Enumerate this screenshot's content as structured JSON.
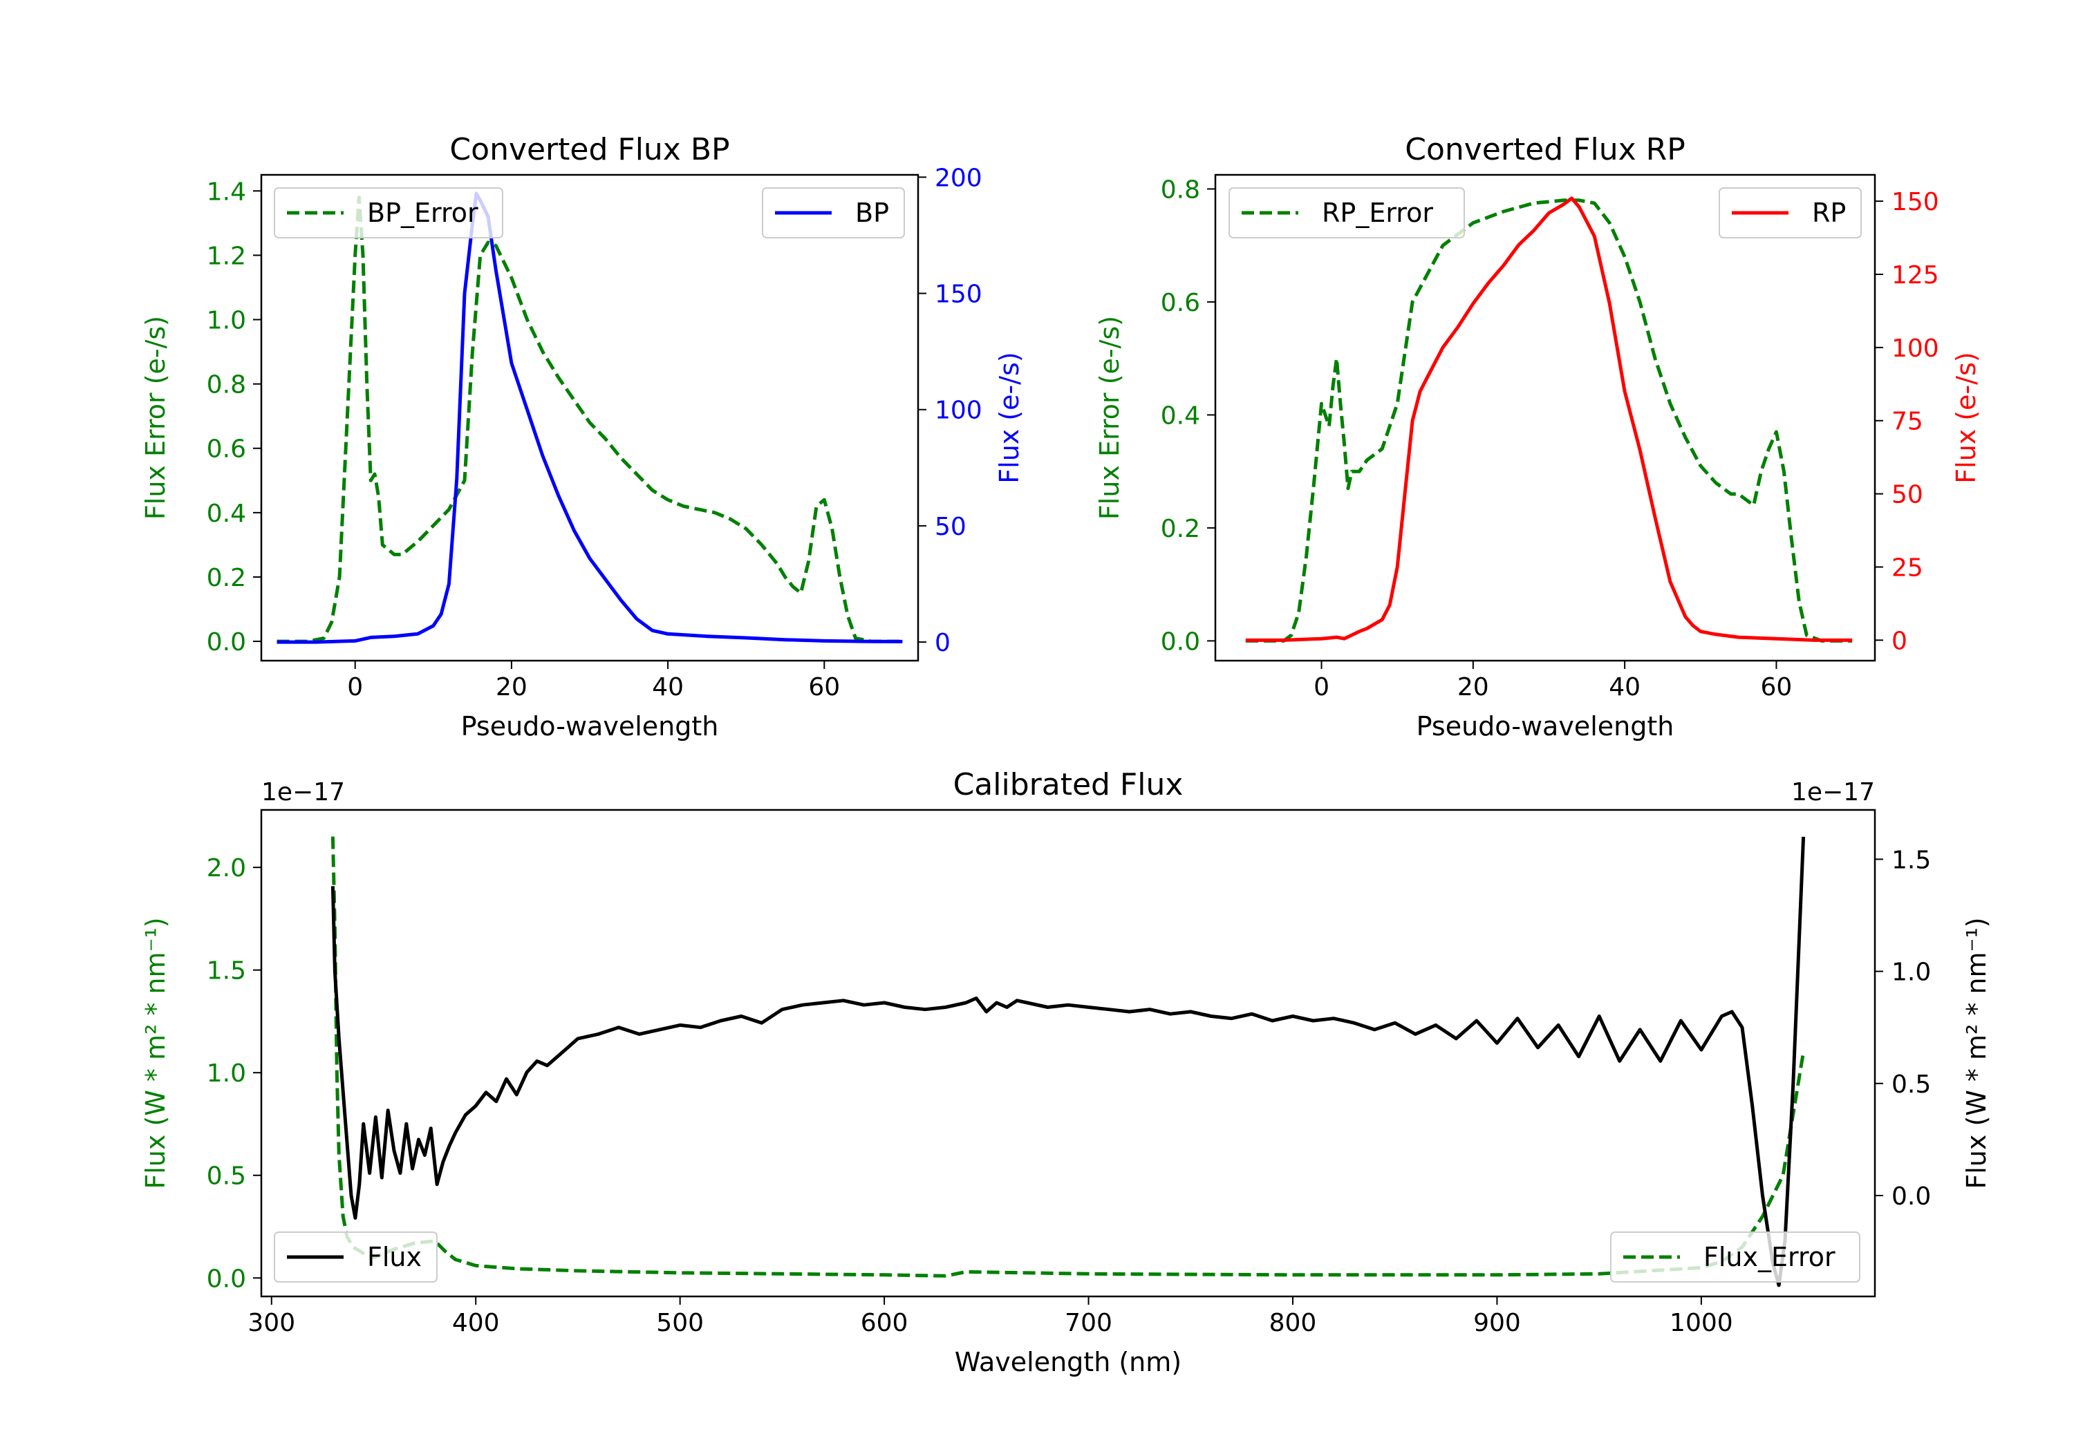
{
  "chart_data": [
    {
      "id": "bp",
      "type": "line",
      "title": "Converted Flux BP",
      "xlabel": "Pseudo-wavelength",
      "ylabel_left": "Flux Error (e-/s)",
      "ylabel_right": "Flux (e-/s)",
      "xlim": [
        -12,
        72
      ],
      "ylim_left": [
        -0.06,
        1.45
      ],
      "ylim_right": [
        -8,
        201
      ],
      "xticks": [
        0,
        20,
        40,
        60
      ],
      "yticks_left": [
        0.0,
        0.2,
        0.4,
        0.6,
        0.8,
        1.0,
        1.2,
        1.4
      ],
      "yticks_right": [
        0,
        50,
        100,
        150,
        200
      ],
      "legend_left_position": "upper-left",
      "legend_right_position": "upper-right",
      "series": [
        {
          "name": "BP_Error",
          "axis": "left",
          "color": "#008000",
          "dash": true,
          "x": [
            -10,
            -6,
            -4,
            -3,
            -2,
            -1,
            0,
            0.5,
            1,
            1.5,
            2,
            2.5,
            3,
            3.5,
            4,
            5,
            6,
            8,
            10,
            12,
            14,
            15,
            16,
            17,
            18,
            20,
            22,
            24,
            26,
            28,
            30,
            32,
            34,
            36,
            38,
            40,
            42,
            44,
            46,
            48,
            50,
            52,
            54,
            55,
            56,
            57,
            58,
            59,
            60,
            61,
            62,
            63,
            64,
            66,
            68,
            70
          ],
          "y": [
            0.0,
            0.0,
            0.01,
            0.06,
            0.2,
            0.7,
            1.2,
            1.38,
            1.2,
            0.8,
            0.5,
            0.52,
            0.45,
            0.3,
            0.29,
            0.27,
            0.27,
            0.31,
            0.36,
            0.41,
            0.5,
            0.9,
            1.2,
            1.24,
            1.23,
            1.13,
            1.0,
            0.9,
            0.82,
            0.75,
            0.68,
            0.63,
            0.57,
            0.52,
            0.47,
            0.44,
            0.42,
            0.41,
            0.4,
            0.38,
            0.35,
            0.3,
            0.24,
            0.2,
            0.17,
            0.15,
            0.25,
            0.42,
            0.44,
            0.35,
            0.2,
            0.08,
            0.01,
            0.0,
            0.0,
            0.0
          ]
        },
        {
          "name": "BP",
          "axis": "right",
          "color": "#0000ff",
          "dash": false,
          "x": [
            -10,
            -5,
            0,
            2,
            5,
            8,
            10,
            11,
            12,
            13,
            14,
            15,
            15.5,
            16,
            17,
            18,
            19,
            20,
            22,
            24,
            26,
            28,
            30,
            32,
            34,
            36,
            38,
            40,
            45,
            50,
            55,
            60,
            65,
            70
          ],
          "y": [
            0,
            0,
            0.5,
            2,
            2.5,
            3.5,
            7,
            12,
            25,
            70,
            150,
            180,
            193,
            190,
            183,
            160,
            140,
            120,
            100,
            80,
            63,
            48,
            36,
            27,
            18,
            10,
            5,
            3.5,
            2.5,
            1.8,
            1,
            0.5,
            0.3,
            0.2
          ]
        }
      ]
    },
    {
      "id": "rp",
      "type": "line",
      "title": "Converted Flux RP",
      "xlabel": "Pseudo-wavelength",
      "ylabel_left": "Flux Error (e-/s)",
      "ylabel_right": "Flux (e-/s)",
      "xlim": [
        -14,
        73
      ],
      "ylim_left": [
        -0.035,
        0.825
      ],
      "ylim_right": [
        -7,
        159
      ],
      "xticks": [
        0,
        20,
        40,
        60
      ],
      "yticks_left": [
        0.0,
        0.2,
        0.4,
        0.6,
        0.8
      ],
      "yticks_right": [
        0,
        25,
        50,
        75,
        100,
        125,
        150
      ],
      "legend_left_position": "upper-left",
      "legend_right_position": "upper-right",
      "series": [
        {
          "name": "RP_Error",
          "axis": "left",
          "color": "#008000",
          "dash": true,
          "x": [
            -10,
            -5,
            -4,
            -3,
            -2,
            -1,
            0,
            1,
            1.5,
            2,
            2.5,
            3,
            3.5,
            4,
            5,
            6,
            8,
            10,
            12,
            14,
            16,
            18,
            20,
            24,
            28,
            32,
            34,
            36,
            38,
            40,
            42,
            44,
            46,
            48,
            50,
            52,
            54,
            55,
            56,
            57,
            58,
            59,
            60,
            61,
            62,
            63,
            64,
            66,
            68,
            70
          ],
          "y": [
            0.0,
            0.0,
            0.01,
            0.05,
            0.15,
            0.28,
            0.42,
            0.38,
            0.45,
            0.5,
            0.42,
            0.35,
            0.27,
            0.3,
            0.3,
            0.32,
            0.34,
            0.42,
            0.6,
            0.65,
            0.7,
            0.72,
            0.74,
            0.76,
            0.775,
            0.78,
            0.78,
            0.775,
            0.74,
            0.68,
            0.6,
            0.5,
            0.42,
            0.36,
            0.31,
            0.28,
            0.26,
            0.26,
            0.25,
            0.24,
            0.3,
            0.34,
            0.37,
            0.3,
            0.18,
            0.07,
            0.01,
            0.0,
            0.0,
            0.0
          ]
        },
        {
          "name": "RP",
          "axis": "right",
          "color": "#ff0000",
          "dash": false,
          "x": [
            -10,
            -5,
            0,
            2,
            3,
            5,
            6,
            8,
            9,
            10,
            11,
            12,
            13,
            14,
            16,
            18,
            20,
            22,
            24,
            26,
            28,
            30,
            32,
            33,
            34,
            36,
            38,
            40,
            42,
            44,
            46,
            48,
            49,
            50,
            52,
            55,
            60,
            65,
            70
          ],
          "y": [
            0,
            0,
            0.5,
            1,
            0.5,
            3,
            4,
            7,
            12,
            25,
            50,
            75,
            85,
            90,
            100,
            107,
            115,
            122,
            128,
            135,
            140,
            146,
            149,
            151,
            148,
            138,
            115,
            85,
            65,
            42,
            20,
            8,
            5,
            3,
            2,
            1,
            0.5,
            0,
            0
          ]
        }
      ]
    },
    {
      "id": "calibrated",
      "type": "line",
      "title": "Calibrated Flux",
      "xlabel": "Wavelength (nm)",
      "ylabel_left": "Flux (W * m² * nm⁻¹)",
      "ylabel_right": "Flux (W * m² * nm⁻¹)",
      "offset_left": "1e−17",
      "offset_right": "1e−17",
      "xlim": [
        295,
        1085
      ],
      "ylim_left": [
        -0.09,
        2.28
      ],
      "ylim_right": [
        -0.45,
        1.72
      ],
      "xticks": [
        300,
        400,
        500,
        600,
        700,
        800,
        900,
        1000
      ],
      "yticks_left": [
        0.0,
        0.5,
        1.0,
        1.5,
        2.0
      ],
      "yticks_right": [
        0.0,
        0.5,
        1.0,
        1.5
      ],
      "legend_left_position": "lower-left",
      "legend_right_position": "lower-right",
      "series": [
        {
          "name": "Flux_Error",
          "axis": "left",
          "color": "#008000",
          "dash": true,
          "x": [
            330,
            331,
            332,
            333,
            335,
            337,
            340,
            345,
            350,
            360,
            370,
            380,
            385,
            390,
            400,
            420,
            450,
            500,
            550,
            600,
            630,
            640,
            700,
            800,
            900,
            950,
            1000,
            1010,
            1020,
            1030,
            1040,
            1045,
            1050
          ],
          "y": [
            2.15,
            1.7,
            1.0,
            0.6,
            0.3,
            0.2,
            0.15,
            0.12,
            0.1,
            0.14,
            0.17,
            0.18,
            0.13,
            0.09,
            0.06,
            0.045,
            0.035,
            0.025,
            0.02,
            0.015,
            0.01,
            0.03,
            0.02,
            0.015,
            0.015,
            0.02,
            0.05,
            0.08,
            0.15,
            0.3,
            0.5,
            0.8,
            1.1
          ]
        },
        {
          "name": "Flux",
          "axis": "right",
          "color": "#000000",
          "dash": false,
          "x": [
            330,
            331,
            333,
            336,
            339,
            341,
            343,
            345,
            348,
            351,
            354,
            357,
            360,
            363,
            366,
            369,
            372,
            375,
            378,
            381,
            384,
            387,
            390,
            395,
            400,
            405,
            410,
            415,
            420,
            425,
            430,
            435,
            440,
            445,
            450,
            460,
            470,
            480,
            490,
            500,
            510,
            520,
            530,
            540,
            550,
            560,
            570,
            580,
            590,
            600,
            610,
            620,
            630,
            640,
            645,
            650,
            655,
            660,
            665,
            670,
            680,
            690,
            700,
            710,
            720,
            730,
            740,
            750,
            760,
            770,
            780,
            790,
            800,
            810,
            820,
            830,
            840,
            850,
            860,
            870,
            880,
            890,
            900,
            910,
            920,
            930,
            940,
            950,
            960,
            970,
            980,
            990,
            1000,
            1010,
            1015,
            1020,
            1025,
            1030,
            1035,
            1038,
            1041,
            1045,
            1050
          ],
          "y": [
            1.38,
            1.0,
            0.7,
            0.35,
            0.0,
            -0.1,
            0.05,
            0.32,
            0.1,
            0.35,
            0.08,
            0.38,
            0.2,
            0.1,
            0.32,
            0.12,
            0.25,
            0.18,
            0.3,
            0.05,
            0.15,
            0.22,
            0.28,
            0.36,
            0.4,
            0.46,
            0.42,
            0.52,
            0.45,
            0.55,
            0.6,
            0.58,
            0.62,
            0.66,
            0.7,
            0.72,
            0.75,
            0.72,
            0.74,
            0.76,
            0.75,
            0.78,
            0.8,
            0.77,
            0.83,
            0.85,
            0.86,
            0.87,
            0.85,
            0.86,
            0.84,
            0.83,
            0.84,
            0.86,
            0.88,
            0.82,
            0.86,
            0.84,
            0.87,
            0.86,
            0.84,
            0.85,
            0.84,
            0.83,
            0.82,
            0.83,
            0.81,
            0.82,
            0.8,
            0.79,
            0.81,
            0.78,
            0.8,
            0.78,
            0.79,
            0.77,
            0.74,
            0.77,
            0.72,
            0.76,
            0.7,
            0.78,
            0.68,
            0.79,
            0.66,
            0.76,
            0.62,
            0.8,
            0.6,
            0.74,
            0.6,
            0.78,
            0.65,
            0.8,
            0.82,
            0.75,
            0.4,
            0.0,
            -0.3,
            -0.4,
            -0.2,
            0.5,
            1.6
          ]
        }
      ]
    }
  ]
}
